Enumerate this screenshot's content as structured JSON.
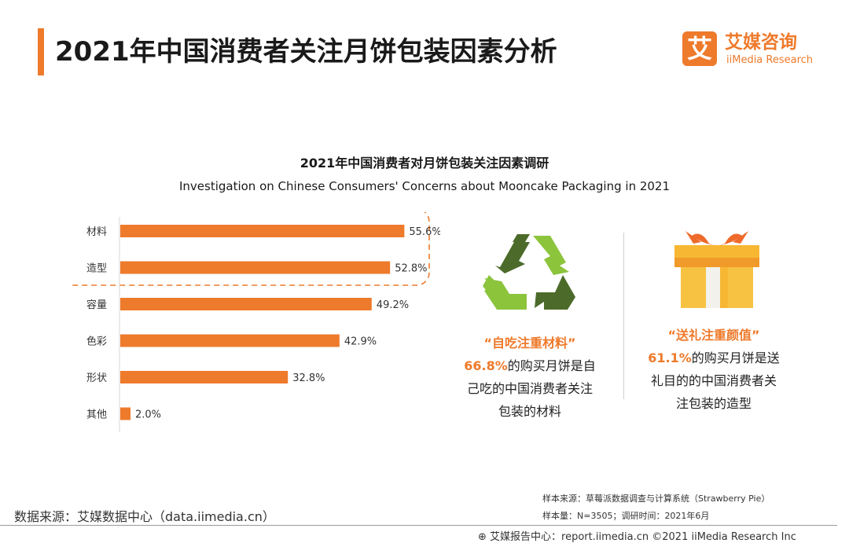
{
  "header": {
    "title": "2021年中国消费者关注月饼包装因素分析",
    "logo_mark": "艾",
    "logo_cn": "艾媒咨询",
    "logo_en": "iiMedia Research"
  },
  "chart_data": {
    "type": "bar",
    "orientation": "horizontal",
    "title": "2021年中国消费者对月饼包装关注因素调研",
    "subtitle": "Investigation on Chinese Consumers' Concerns about Mooncake Packaging in 2021",
    "categories": [
      "材料",
      "造型",
      "容量",
      "色彩",
      "形状",
      "其他"
    ],
    "values": [
      55.6,
      52.8,
      49.2,
      42.9,
      32.8,
      2.0
    ],
    "value_labels": [
      "55.6%",
      "52.8%",
      "49.2%",
      "42.9%",
      "32.8%",
      "2.0%"
    ],
    "highlighted": [
      "材料",
      "造型"
    ],
    "xlim": [
      0,
      60
    ],
    "grid": false,
    "bar_color": "#ee7a2b"
  },
  "callouts": [
    {
      "icon": "recycle-icon",
      "heading": "“自吃注重材料”",
      "pct": "66.8%",
      "line1_rest": "的购买月饼是自",
      "line2": "己吃的中国消费者关注",
      "line3": "包装的材料"
    },
    {
      "icon": "gift-icon",
      "heading": "“送礼注重颜值”",
      "pct": "61.1%",
      "line1_rest": "的购买月饼是送",
      "line2": "礼目的的中国消费者关",
      "line3": "注包装的造型"
    }
  ],
  "source": {
    "left": "数据来源：艾媒数据中心（data.iimedia.cn）",
    "right1": "样本来源：草莓派数据调查与计算系统（Strawberry Pie）",
    "right2": "样本量：N=3505；调研时间：2021年6月",
    "footer": "艾媒报告中心：report.iimedia.cn  ©2021  iiMedia Research  Inc"
  },
  "colors": {
    "accent": "#ee7a2b",
    "recycle_dark": "#4c6b2a",
    "recycle_light": "#8cc43c",
    "gift_body": "#f7b733",
    "gift_ribbon": "#ee6a2b"
  }
}
